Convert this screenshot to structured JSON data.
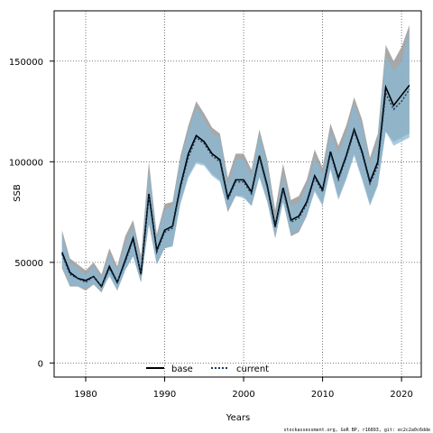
{
  "chart_data": {
    "type": "line",
    "xlabel": "Years",
    "ylabel": "SSB",
    "xlim": [
      1976,
      2022.5
    ],
    "ylim": [
      -7000,
      175000
    ],
    "xticks": [
      1980,
      1990,
      2000,
      2010,
      2020
    ],
    "yticks": [
      0,
      50000,
      100000,
      150000
    ],
    "xtick_labels": [
      "1980",
      "1990",
      "2000",
      "2010",
      "2020"
    ],
    "ytick_labels": [
      "0",
      "50000",
      "100000",
      "150000"
    ],
    "grid": true,
    "legend_position": "bottom-center",
    "footer": "stockassessment.org, GoR BP, r16893, git: ec2c2a0c6dde",
    "x": [
      1977,
      1978,
      1979,
      1980,
      1981,
      1982,
      1983,
      1984,
      1985,
      1986,
      1987,
      1988,
      1989,
      1990,
      1991,
      1992,
      1993,
      1994,
      1995,
      1996,
      1997,
      1998,
      1999,
      2000,
      2001,
      2002,
      2003,
      2004,
      2005,
      2006,
      2007,
      2008,
      2009,
      2010,
      2011,
      2012,
      2013,
      2014,
      2015,
      2016,
      2017,
      2018,
      2019,
      2020,
      2021
    ],
    "series": [
      {
        "name": "base",
        "color": "#000000",
        "band_color": "#999999",
        "values": [
          55000,
          45000,
          42000,
          41000,
          43000,
          38000,
          48000,
          40000,
          51000,
          62000,
          44000,
          84000,
          56000,
          66000,
          68000,
          88000,
          104000,
          113000,
          110000,
          104000,
          101000,
          82000,
          91000,
          91000,
          85000,
          103000,
          88000,
          68000,
          87000,
          71000,
          73000,
          80000,
          93000,
          86000,
          105000,
          92000,
          103000,
          116000,
          105000,
          90000,
          100000,
          137000,
          128000,
          133000,
          138000
        ],
        "lower": [
          47000,
          38000,
          38000,
          36000,
          39000,
          35000,
          44000,
          36000,
          46000,
          53000,
          40000,
          69000,
          49000,
          57000,
          58000,
          80000,
          93000,
          100000,
          99000,
          94000,
          91000,
          75000,
          83000,
          83000,
          78000,
          93000,
          80000,
          62000,
          80000,
          63000,
          65000,
          73000,
          86000,
          79000,
          97000,
          82000,
          92000,
          104000,
          92000,
          79000,
          89000,
          115000,
          110000,
          112000,
          114000
        ],
        "upper": [
          66000,
          52000,
          49000,
          46000,
          50000,
          44000,
          57000,
          48000,
          63000,
          71000,
          53000,
          100000,
          64000,
          79000,
          80000,
          103000,
          118000,
          130000,
          124000,
          117000,
          114000,
          92000,
          104000,
          104000,
          96000,
          116000,
          101000,
          76000,
          99000,
          81000,
          83000,
          91000,
          106000,
          97000,
          119000,
          108000,
          118000,
          132000,
          121000,
          102000,
          114000,
          158000,
          150000,
          157000,
          168000
        ]
      },
      {
        "name": "current",
        "color": "#1a3a5c",
        "band_color": "#8ab8d4",
        "values": [
          54000,
          44000,
          42000,
          40000,
          43000,
          38000,
          47000,
          40000,
          50000,
          61000,
          44000,
          83000,
          55000,
          65000,
          67000,
          87000,
          102000,
          112000,
          109000,
          103000,
          100000,
          81000,
          90000,
          90000,
          84000,
          102000,
          87000,
          67000,
          86000,
          70000,
          72000,
          79000,
          92000,
          85000,
          104000,
          91000,
          102000,
          115000,
          104000,
          89000,
          98000,
          134000,
          126000,
          130000,
          136000
        ],
        "lower": [
          48000,
          39000,
          38000,
          37000,
          39000,
          36000,
          43000,
          36000,
          46000,
          53000,
          40000,
          70000,
          49000,
          57000,
          58000,
          79000,
          92000,
          99000,
          98000,
          93000,
          90000,
          76000,
          83000,
          82000,
          78000,
          92000,
          80000,
          63000,
          80000,
          64000,
          66000,
          73000,
          85000,
          78000,
          96000,
          81000,
          91000,
          103000,
          91000,
          78000,
          88000,
          115000,
          108000,
          110000,
          112000
        ],
        "upper": [
          64000,
          50000,
          47000,
          44000,
          48000,
          42000,
          54000,
          46000,
          59000,
          68000,
          50000,
          96000,
          62000,
          76000,
          78000,
          101000,
          115000,
          127000,
          121000,
          114000,
          112000,
          88000,
          101000,
          101000,
          93000,
          114000,
          98000,
          72000,
          94000,
          78000,
          80000,
          88000,
          102000,
          94000,
          115000,
          104000,
          114000,
          129000,
          118000,
          99000,
          110000,
          153000,
          145000,
          150000,
          165000
        ]
      }
    ]
  }
}
